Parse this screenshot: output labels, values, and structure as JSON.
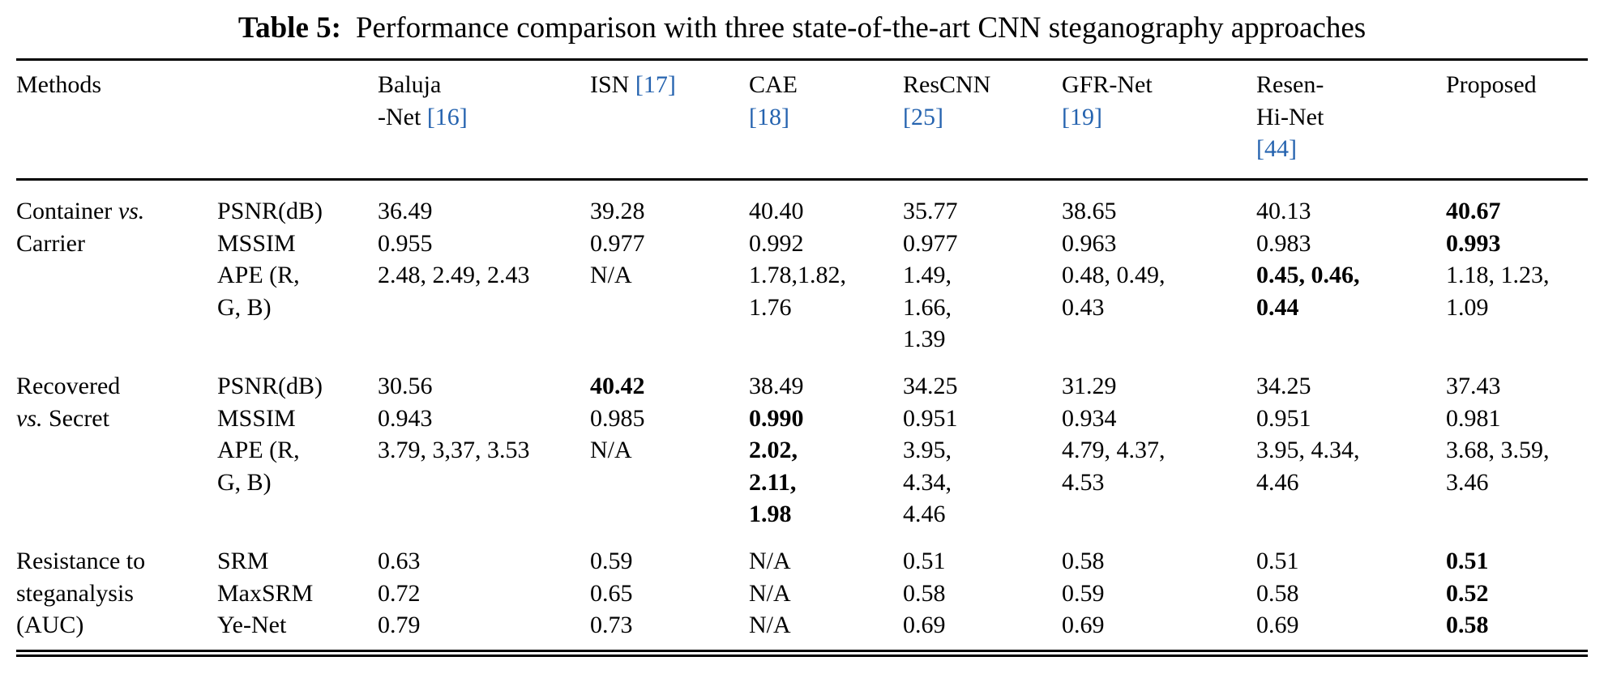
{
  "title": {
    "label": "Table 5:",
    "text": "Performance comparison with three state-of-the-art CNN steganography approaches"
  },
  "colors": {
    "citation": "#2563af",
    "text": "#000000",
    "rule": "#000000"
  },
  "table": {
    "methods_header": "Methods",
    "columns": [
      {
        "key": "baluja-net",
        "header_lines": [
          [
            {
              "t": "Baluja"
            }
          ],
          [
            {
              "t": "-Net "
            },
            {
              "t": "[16]",
              "cite": true
            }
          ]
        ]
      },
      {
        "key": "isn",
        "header_lines": [
          [
            {
              "t": "ISN "
            },
            {
              "t": "[17]",
              "cite": true
            }
          ]
        ]
      },
      {
        "key": "cae",
        "header_lines": [
          [
            {
              "t": "CAE"
            }
          ],
          [
            {
              "t": "[18]",
              "cite": true
            }
          ]
        ]
      },
      {
        "key": "rescnn",
        "header_lines": [
          [
            {
              "t": "ResCNN"
            }
          ],
          [
            {
              "t": "[25]",
              "cite": true
            }
          ]
        ]
      },
      {
        "key": "gfr-net",
        "header_lines": [
          [
            {
              "t": "GFR-Net"
            }
          ],
          [
            {
              "t": "[19]",
              "cite": true
            }
          ]
        ]
      },
      {
        "key": "resen-hi-net",
        "header_lines": [
          [
            {
              "t": "Resen-"
            }
          ],
          [
            {
              "t": "Hi-Net"
            }
          ],
          [
            {
              "t": "[44]",
              "cite": true
            }
          ]
        ]
      },
      {
        "key": "proposed",
        "header_lines": [
          [
            {
              "t": "Proposed"
            }
          ]
        ]
      }
    ],
    "groups": [
      {
        "label_lines": [
          [
            {
              "t": "Container "
            },
            {
              "t": "vs.",
              "italic": true
            }
          ],
          [
            {
              "t": "Carrier"
            }
          ]
        ],
        "rows": [
          {
            "metric": "PSNR(dB)",
            "cells": [
              {
                "t": "36.49"
              },
              {
                "t": "39.28"
              },
              {
                "t": "40.40"
              },
              {
                "t": "35.77"
              },
              {
                "t": "38.65"
              },
              {
                "t": "40.13"
              },
              {
                "t": "40.67",
                "bold": true
              }
            ]
          },
          {
            "metric": "MSSIM",
            "cells": [
              {
                "t": "0.955"
              },
              {
                "t": "0.977"
              },
              {
                "t": "0.992"
              },
              {
                "t": "0.977"
              },
              {
                "t": "0.963"
              },
              {
                "t": "0.983"
              },
              {
                "t": "0.993",
                "bold": true
              }
            ]
          },
          {
            "metric": "APE (R,\nG, B)",
            "cells": [
              {
                "t": "2.48, 2.49, 2.43"
              },
              {
                "t": "N/A"
              },
              {
                "t": "1.78,1.82,\n1.76"
              },
              {
                "t": "1.49,\n1.66,\n1.39"
              },
              {
                "t": "0.48, 0.49,\n0.43"
              },
              {
                "t": "0.45, 0.46,\n0.44",
                "bold": true
              },
              {
                "t": "1.18, 1.23,\n1.09"
              }
            ]
          }
        ]
      },
      {
        "label_lines": [
          [
            {
              "t": "Recovered"
            }
          ],
          [
            {
              "t": "vs.",
              "italic": true
            },
            {
              "t": " Secret"
            }
          ]
        ],
        "rows": [
          {
            "metric": "PSNR(dB)",
            "cells": [
              {
                "t": "30.56"
              },
              {
                "t": "40.42",
                "bold": true
              },
              {
                "t": "38.49"
              },
              {
                "t": "34.25"
              },
              {
                "t": "31.29"
              },
              {
                "t": "34.25"
              },
              {
                "t": "37.43"
              }
            ]
          },
          {
            "metric": "MSSIM",
            "cells": [
              {
                "t": "0.943"
              },
              {
                "t": "0.985"
              },
              {
                "t": "0.990",
                "bold": true
              },
              {
                "t": "0.951"
              },
              {
                "t": "0.934"
              },
              {
                "t": "0.951"
              },
              {
                "t": "0.981"
              }
            ]
          },
          {
            "metric": "APE (R,\nG, B)",
            "cells": [
              {
                "t": "3.79, 3,37, 3.53"
              },
              {
                "t": "N/A"
              },
              {
                "t": "2.02,\n2.11,\n1.98",
                "bold": true
              },
              {
                "t": "3.95,\n4.34,\n4.46"
              },
              {
                "t": "4.79, 4.37,\n4.53"
              },
              {
                "t": "3.95, 4.34,\n4.46"
              },
              {
                "t": "3.68, 3.59,\n3.46"
              }
            ]
          }
        ]
      },
      {
        "label_lines": [
          [
            {
              "t": "Resistance to"
            }
          ],
          [
            {
              "t": "steganalysis"
            }
          ],
          [
            {
              "t": "(AUC)"
            }
          ]
        ],
        "rows": [
          {
            "metric": "SRM",
            "cells": [
              {
                "t": "0.63"
              },
              {
                "t": "0.59"
              },
              {
                "t": "N/A"
              },
              {
                "t": "0.51"
              },
              {
                "t": "0.58"
              },
              {
                "t": "0.51"
              },
              {
                "t": "0.51",
                "bold": true
              }
            ]
          },
          {
            "metric": "MaxSRM",
            "cells": [
              {
                "t": "0.72"
              },
              {
                "t": "0.65"
              },
              {
                "t": "N/A"
              },
              {
                "t": "0.58"
              },
              {
                "t": "0.59"
              },
              {
                "t": "0.58"
              },
              {
                "t": "0.52",
                "bold": true
              }
            ]
          },
          {
            "metric": "Ye-Net",
            "cells": [
              {
                "t": "0.79"
              },
              {
                "t": "0.73"
              },
              {
                "t": "N/A"
              },
              {
                "t": "0.69"
              },
              {
                "t": "0.69"
              },
              {
                "t": "0.69"
              },
              {
                "t": "0.58",
                "bold": true
              }
            ]
          }
        ]
      }
    ]
  }
}
